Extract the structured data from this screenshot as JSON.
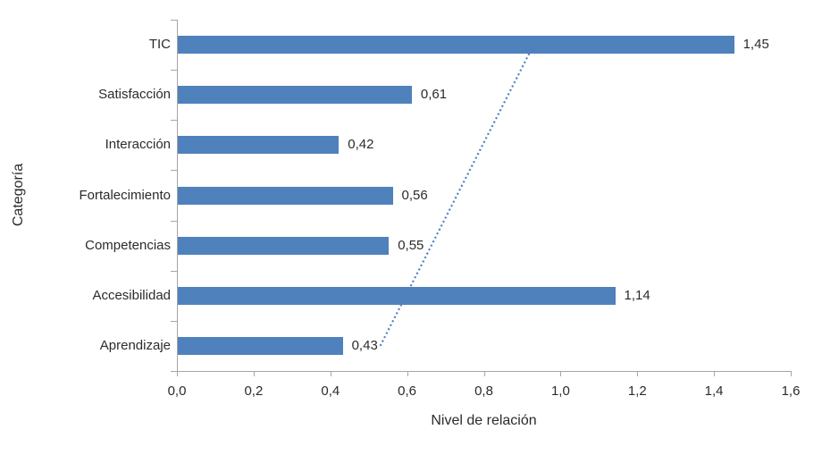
{
  "chart_data": {
    "type": "bar",
    "orientation": "horizontal",
    "title": "",
    "xlabel": "Nivel de relación",
    "ylabel": "Categoría",
    "xlim": [
      0,
      1.6
    ],
    "x_tick_step": 0.2,
    "x_tick_labels": [
      "0,0",
      "0,2",
      "0,4",
      "0,6",
      "0,8",
      "1,0",
      "1,2",
      "1,4",
      "1,6"
    ],
    "categories": [
      "TIC",
      "Satisfacción",
      "Interacción",
      "Fortalecimiento",
      "Competencias",
      "Accesibilidad",
      "Aprendizaje"
    ],
    "values": [
      1.45,
      0.61,
      0.42,
      0.56,
      0.55,
      1.14,
      0.43
    ],
    "value_labels": [
      "1,45",
      "0,61",
      "0,42",
      "0,56",
      "0,55",
      "1,14",
      "0,43"
    ],
    "bar_color": "#4f81bd",
    "trendline": {
      "type": "linear",
      "style": "dotted",
      "color": "#4f81bd",
      "x_start": 0.53,
      "start_category": "Aprendizaje",
      "x_end": 0.93,
      "end_category": "TIC"
    },
    "axis_color": "#a6a6a6",
    "text_color": "#2b2b2b",
    "grid": false,
    "legend": "none"
  }
}
